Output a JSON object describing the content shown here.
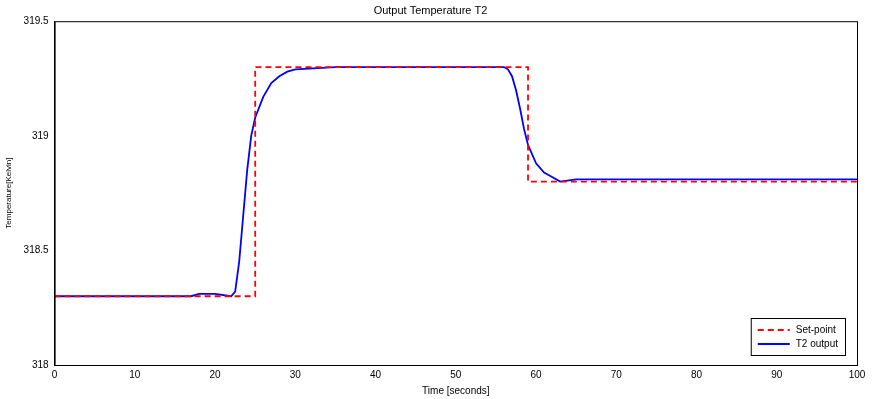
{
  "chart_data": {
    "type": "line",
    "title": "Output Temperature T2",
    "x_label": "Time [seconds]",
    "y_label": "Temperature[Kelvin]",
    "xlim": [
      0,
      100
    ],
    "xticks": [
      0,
      10,
      20,
      30,
      40,
      50,
      60,
      70,
      80,
      90,
      100
    ],
    "ylim": [
      318,
      319.5
    ],
    "yticks": [
      318,
      318.5,
      319,
      319.5
    ],
    "grid": false,
    "legend": "lower right",
    "series": [
      {
        "name": "Set-point",
        "color": "#ff0000",
        "line_style": "dashed",
        "marker": "none",
        "x": [
          0,
          25,
          25,
          59,
          59,
          100
        ],
        "values": [
          318.3,
          318.3,
          319.3,
          319.3,
          318.8,
          318.8
        ]
      },
      {
        "name": "T2 output",
        "color": "#0000ff",
        "line_style": "solid",
        "marker": "none",
        "x": [
          0,
          17,
          18,
          20,
          22,
          22.5,
          23,
          23.5,
          24,
          24.5,
          25,
          26,
          27,
          28,
          29,
          30,
          35,
          45,
          55,
          56,
          56.5,
          57,
          57.5,
          58,
          58.5,
          59,
          60,
          61,
          62,
          63,
          65,
          70,
          80,
          90,
          100
        ],
        "values": [
          318.3,
          318.3,
          318.31,
          318.31,
          318.3,
          318.32,
          318.45,
          318.65,
          318.85,
          319.0,
          319.08,
          319.17,
          319.23,
          319.26,
          319.28,
          319.29,
          319.3,
          319.3,
          319.3,
          319.3,
          319.29,
          319.26,
          319.2,
          319.12,
          319.03,
          318.96,
          318.88,
          318.84,
          318.82,
          318.8,
          318.81,
          318.81,
          318.81,
          318.81,
          318.81
        ]
      }
    ]
  }
}
